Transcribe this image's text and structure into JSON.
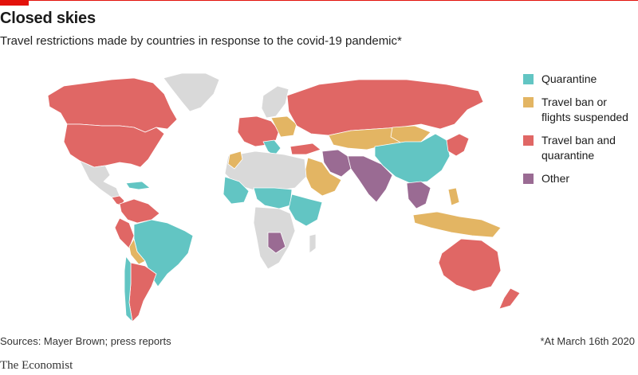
{
  "header": {
    "title": "Closed skies",
    "subtitle": "Travel restrictions made by countries in response to the covid-19 pandemic*"
  },
  "colors": {
    "quarantine": "#62c5c3",
    "travel_ban": "#e3b563",
    "ban_and_quarantine": "#e06765",
    "other": "#9a6b93",
    "no_data": "#d9d9d9",
    "accent": "#e3120b"
  },
  "legend": {
    "items": [
      {
        "label": "Quarantine",
        "color": "#62c5c3"
      },
      {
        "label": "Travel ban or flights suspended",
        "color": "#e3b563"
      },
      {
        "label": "Travel ban and quarantine",
        "color": "#e06765"
      },
      {
        "label": "Other",
        "color": "#9a6b93"
      }
    ]
  },
  "footer": {
    "source": "Sources: Mayer Brown; press reports",
    "footnote": "*At March 16th 2020",
    "brand": "The Economist"
  }
}
